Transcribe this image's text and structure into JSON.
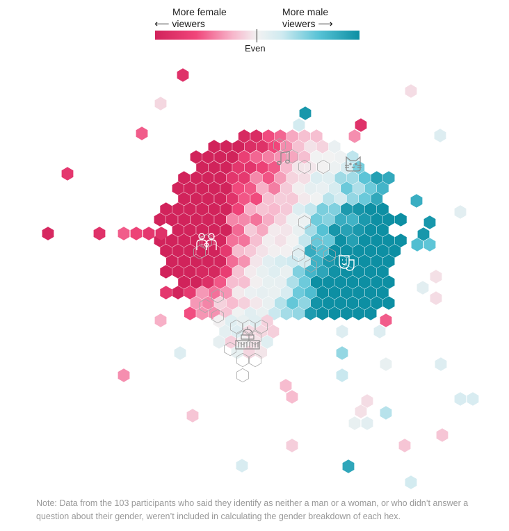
{
  "legend": {
    "female_label_line1": "More female",
    "female_label_line2": "viewers",
    "male_label_line1": "More male",
    "male_label_line2": "viewers",
    "even_label": "Even",
    "arrow_left": "⟵",
    "arrow_right": "⟶",
    "colors": {
      "female_strong": "#d1235b",
      "female": "#f0457a",
      "female_light": "#f7b6cb",
      "even": "#f2f2f2",
      "male_light": "#cfeaf0",
      "male": "#58c3d6",
      "male_strong": "#0d8fa3"
    }
  },
  "note": "Note: Data from the 103 participants who said they identify as neither a man or a woman, or who didn’t answer a question about their gender, weren’t included in calculating the gender breakdown of each hex.",
  "icons": [
    "family-icon",
    "music-note-icon",
    "cat-icon",
    "theater-masks-icon",
    "capitol-building-icon"
  ],
  "chart_data": {
    "type": "hexbin",
    "title": "",
    "xlabel": "",
    "ylabel": "",
    "color_scale": {
      "min_label": "More female viewers",
      "mid_label": "Even",
      "max_label": "More male viewers",
      "domain": [
        -1,
        1
      ],
      "stops": [
        "#d1235b",
        "#f0457a",
        "#f7b6cb",
        "#f2f2f2",
        "#cfeaf0",
        "#58c3d6",
        "#0d8fa3"
      ]
    },
    "note": "cluster of hexes, each colored by gender share of its viewers"
  }
}
